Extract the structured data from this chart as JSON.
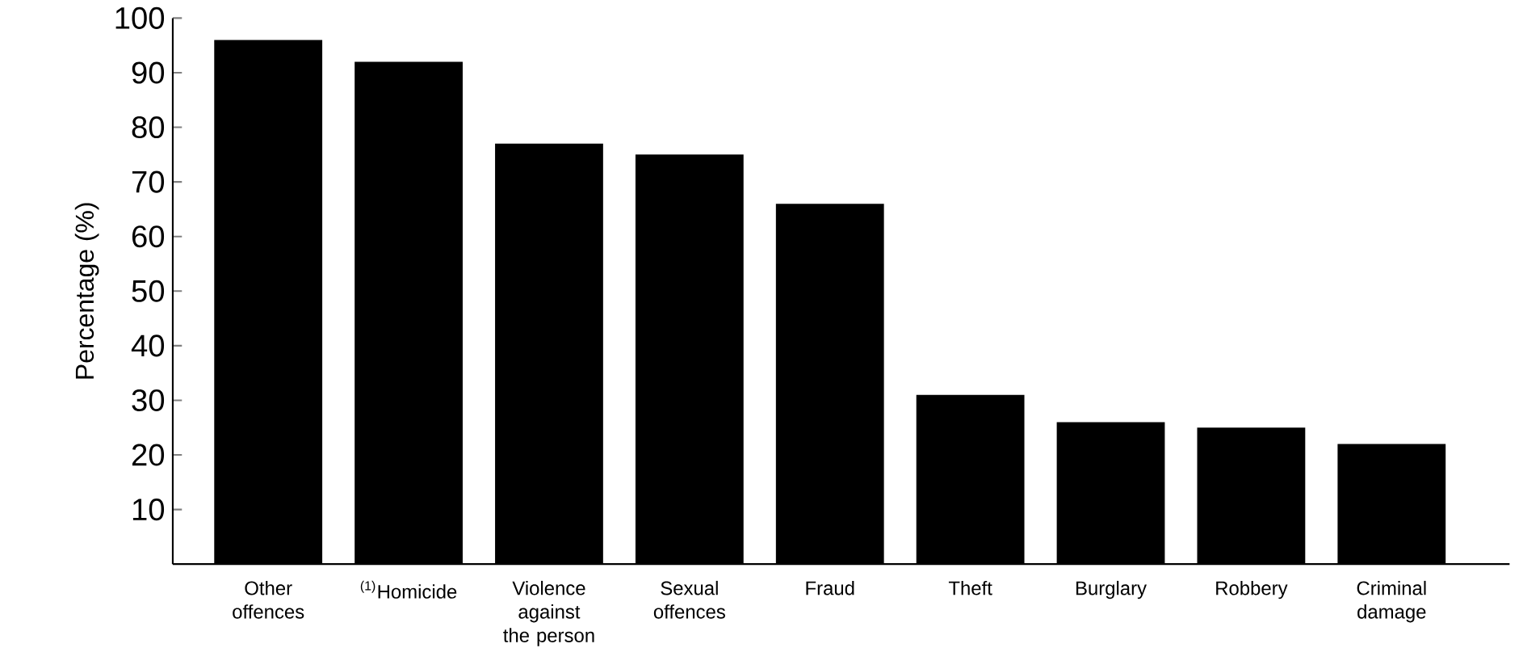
{
  "chart_data": {
    "type": "bar",
    "ylabel": "Percentage (%)",
    "categories": [
      "Other offences",
      "$^{(1)}$Homicide",
      "Violence against the person",
      "Sexual offences",
      "Fraud",
      "Theft",
      "Burglary",
      "Robbery",
      "Criminal damage"
    ],
    "values": [
      96,
      92,
      77,
      75,
      66,
      31,
      26,
      25,
      22
    ],
    "color": "#000000",
    "ylim": [
      0,
      100
    ],
    "yticks": [
      10,
      20,
      30,
      40,
      50,
      60,
      70,
      80,
      90,
      100
    ],
    "grid": false
  }
}
